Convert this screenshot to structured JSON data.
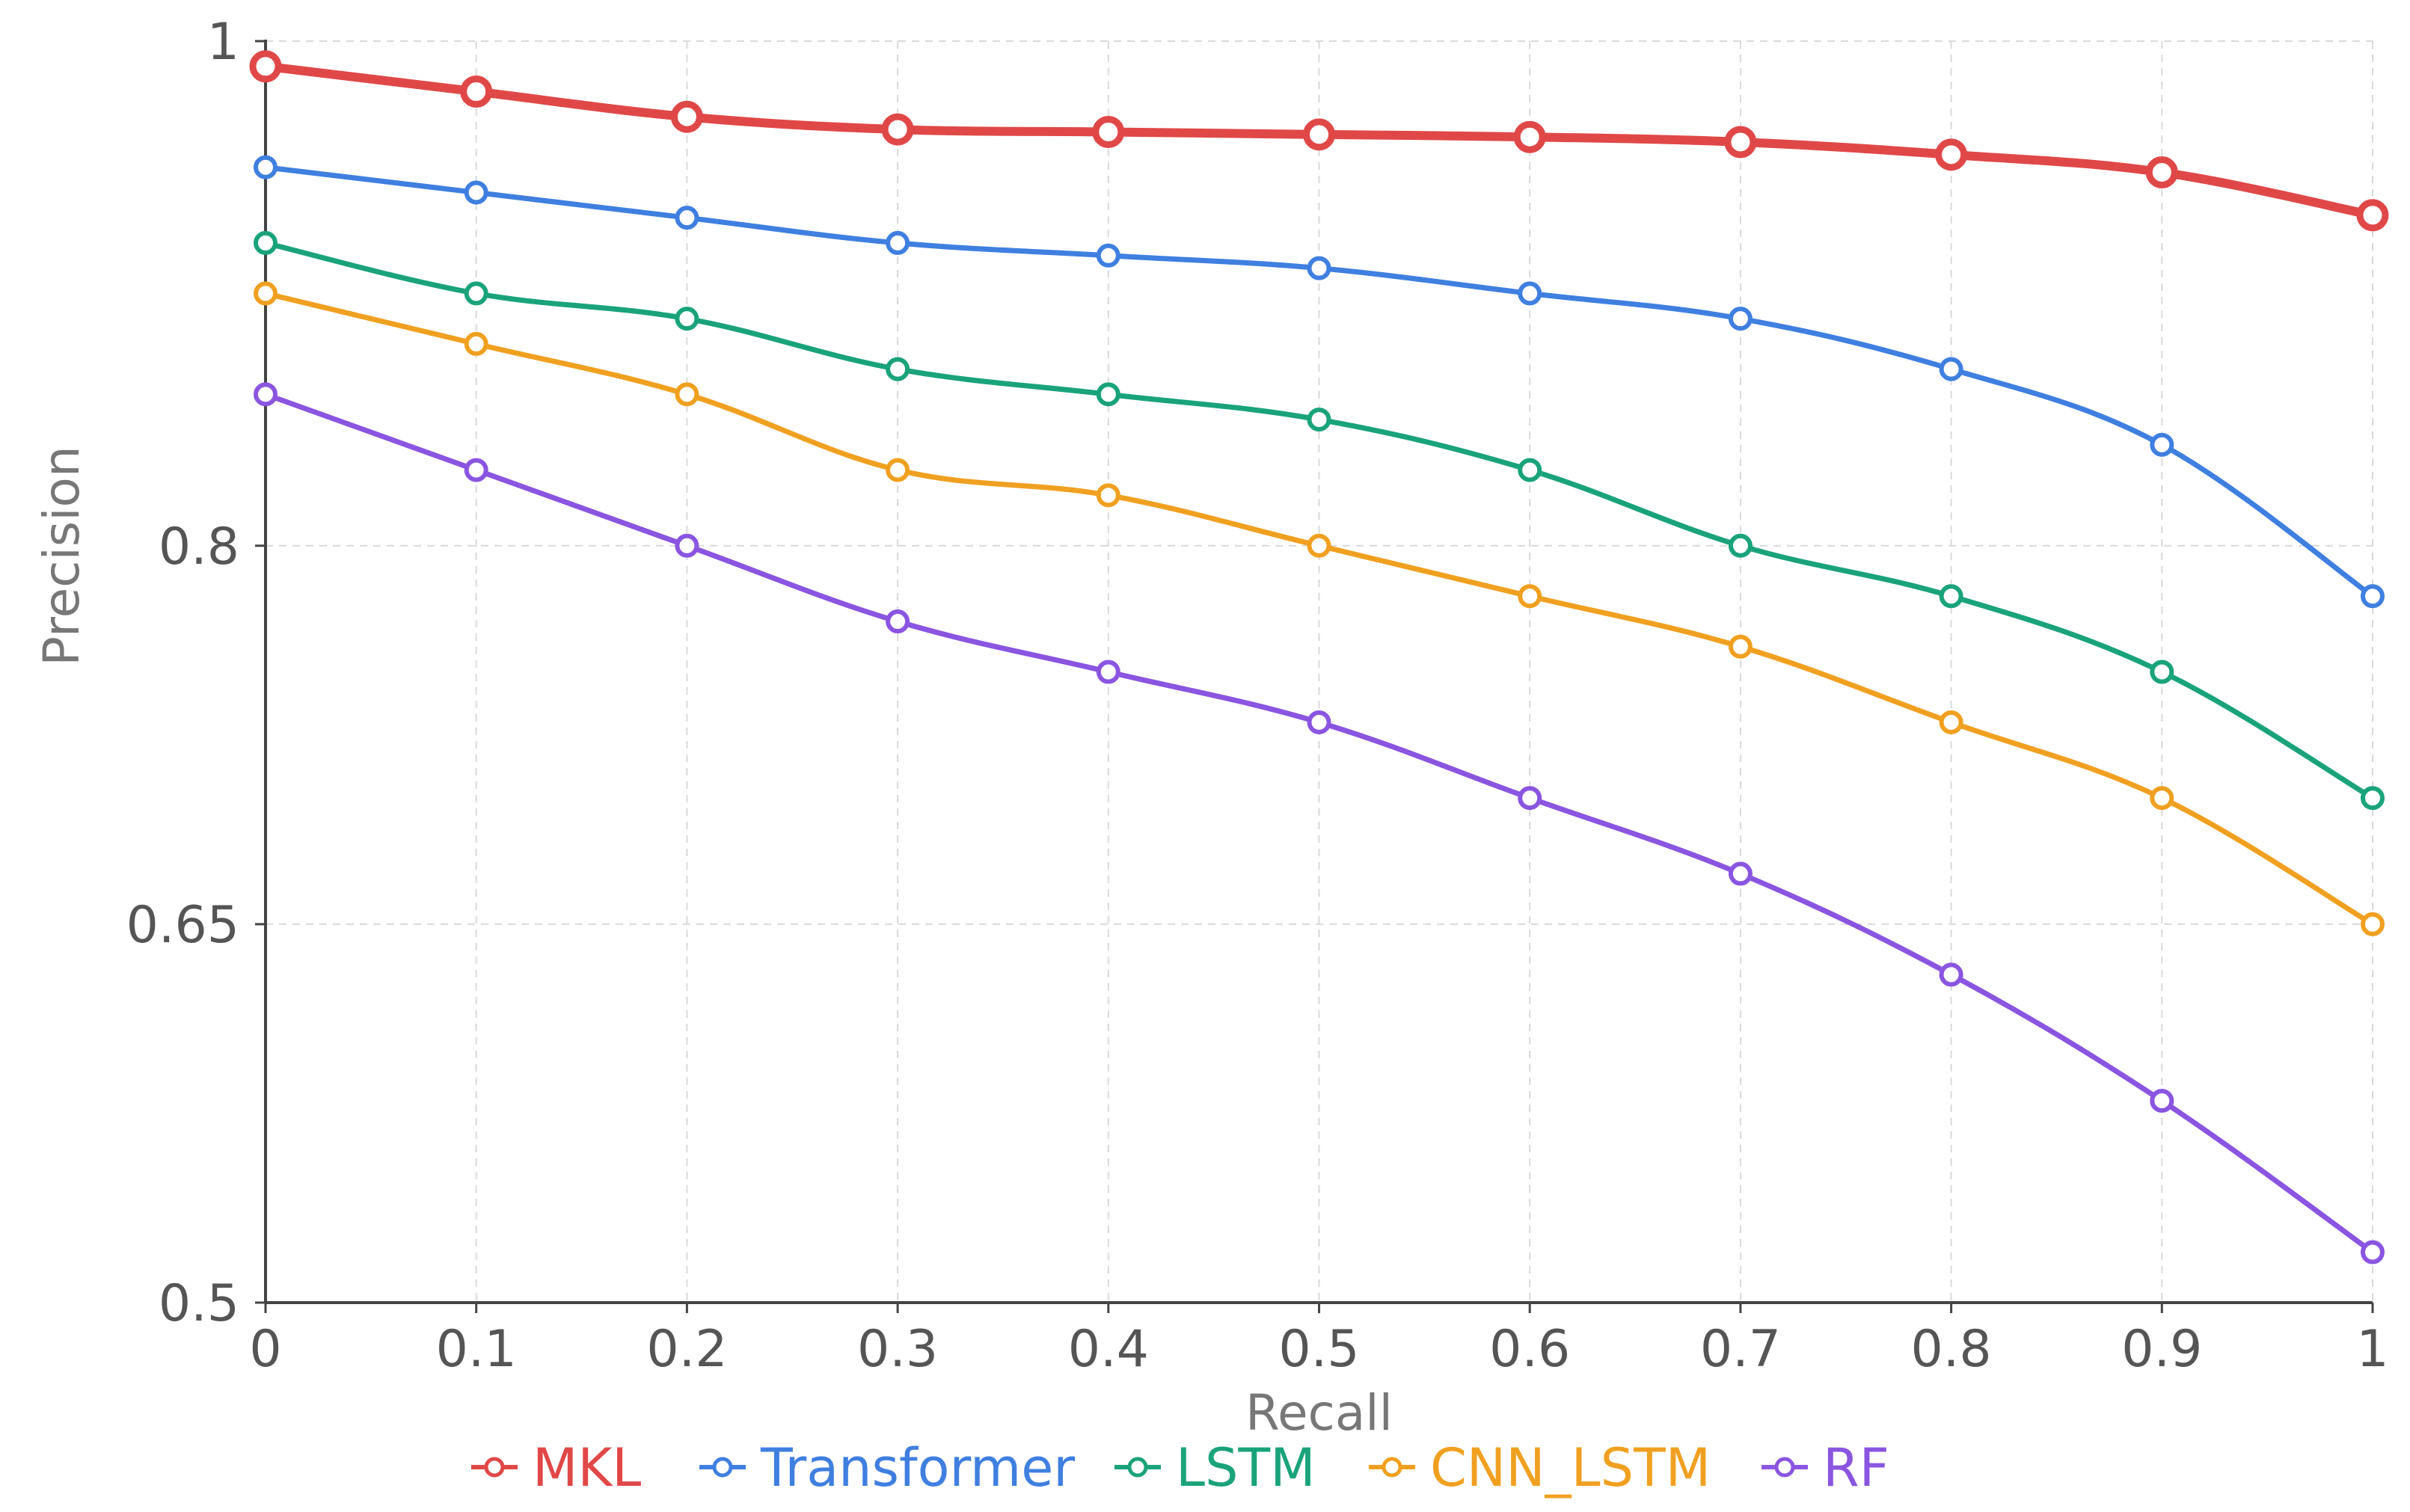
{
  "chart_data": {
    "type": "line",
    "title": "",
    "xlabel": "Recall",
    "ylabel": "Precision",
    "x": [
      0,
      0.1,
      0.2,
      0.3,
      0.4,
      0.5,
      0.6,
      0.7,
      0.8,
      0.9,
      1
    ],
    "x_tick_labels": [
      "0",
      "0.1",
      "0.2",
      "0.3",
      "0.4",
      "0.5",
      "0.6",
      "0.7",
      "0.8",
      "0.9",
      "1"
    ],
    "y_ticks": [
      0.5,
      0.65,
      0.8,
      1
    ],
    "y_tick_labels": [
      "0.5",
      "0.65",
      "0.8",
      "1"
    ],
    "xlim": [
      0,
      1
    ],
    "ylim": [
      0.5,
      1
    ],
    "grid": true,
    "legend_position": "bottom-center",
    "series": [
      {
        "name": "MKL",
        "color": "#e04848",
        "emphasis": true,
        "values": [
          0.99,
          0.98,
          0.97,
          0.965,
          0.964,
          0.963,
          0.962,
          0.96,
          0.955,
          0.948,
          0.931
        ]
      },
      {
        "name": "Transformer",
        "color": "#3f7fe0",
        "emphasis": false,
        "values": [
          0.95,
          0.94,
          0.93,
          0.92,
          0.915,
          0.91,
          0.9,
          0.89,
          0.87,
          0.84,
          0.78
        ]
      },
      {
        "name": "LSTM",
        "color": "#1aa37a",
        "emphasis": false,
        "values": [
          0.92,
          0.9,
          0.89,
          0.87,
          0.86,
          0.85,
          0.83,
          0.8,
          0.78,
          0.75,
          0.7
        ]
      },
      {
        "name": "CNN_LSTM",
        "color": "#f0a020",
        "emphasis": false,
        "values": [
          0.9,
          0.88,
          0.86,
          0.83,
          0.82,
          0.8,
          0.78,
          0.76,
          0.73,
          0.7,
          0.65
        ]
      },
      {
        "name": "RF",
        "color": "#8a55e0",
        "emphasis": false,
        "values": [
          0.86,
          0.83,
          0.8,
          0.77,
          0.75,
          0.73,
          0.7,
          0.67,
          0.63,
          0.58,
          0.52
        ]
      }
    ]
  }
}
